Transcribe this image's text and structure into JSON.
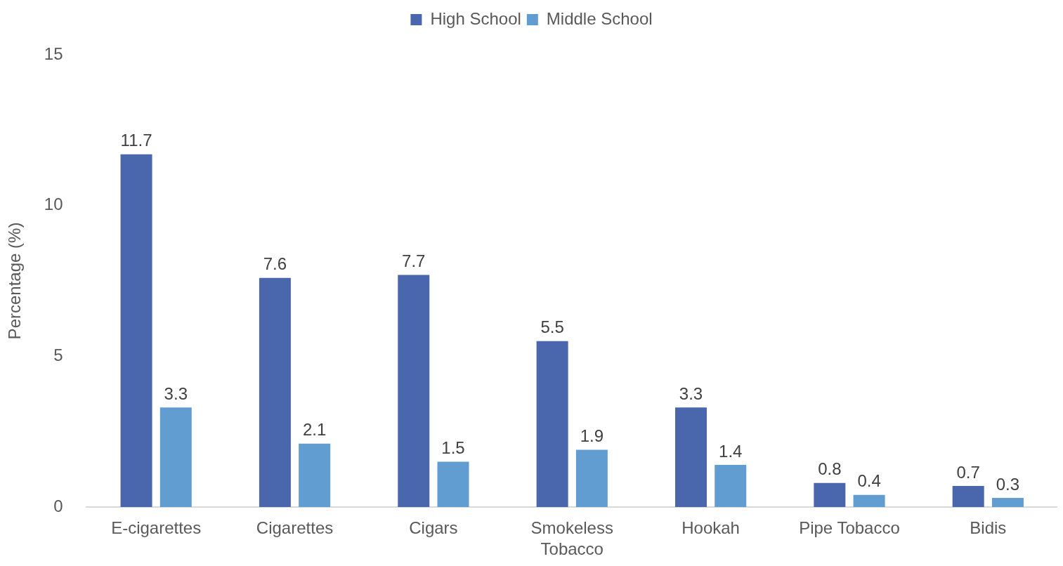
{
  "chart_data": {
    "type": "bar",
    "categories": [
      "E-cigarettes",
      "Cigarettes",
      "Cigars",
      "Smokeless Tobacco",
      "Hookah",
      "Pipe Tobacco",
      "Bidis"
    ],
    "series": [
      {
        "name": "High School",
        "color": "#4a66ac",
        "values": [
          11.7,
          7.6,
          7.7,
          5.5,
          3.3,
          0.8,
          0.7
        ]
      },
      {
        "name": "Middle School",
        "color": "#629dd1",
        "values": [
          3.3,
          2.1,
          1.5,
          1.9,
          1.4,
          0.4,
          0.3
        ]
      }
    ],
    "ylabel": "Percentage (%)",
    "ylim": [
      0,
      15
    ],
    "yticks": [
      0,
      5,
      10,
      15
    ],
    "legend": "top",
    "data_labels": true
  }
}
